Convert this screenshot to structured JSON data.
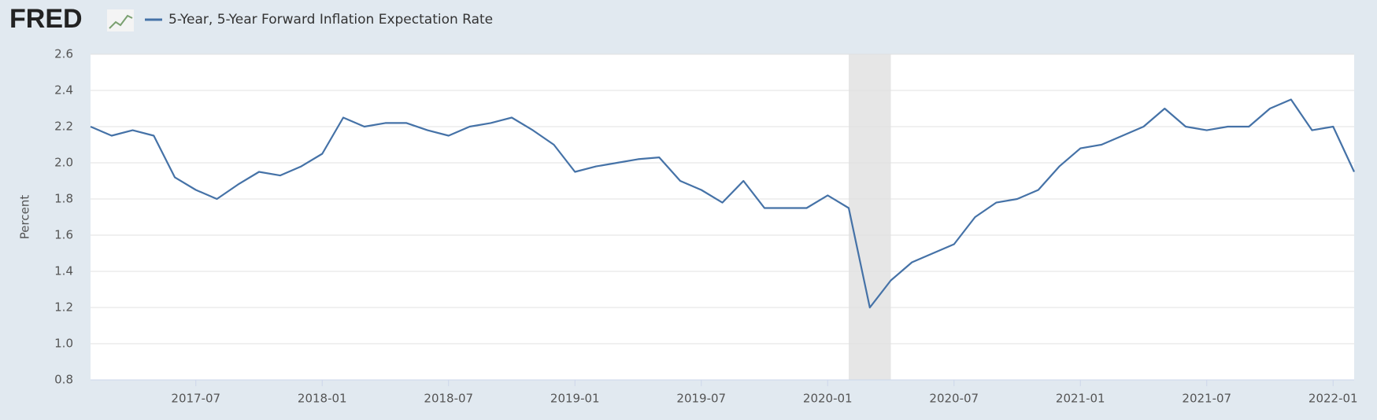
{
  "logo": "FRED",
  "chart_data": {
    "type": "line",
    "ylabel": "Percent",
    "x": [
      "2017-02",
      "2017-03",
      "2017-04",
      "2017-05",
      "2017-06",
      "2017-07",
      "2017-08",
      "2017-09",
      "2017-10",
      "2017-11",
      "2017-12",
      "2018-01",
      "2018-02",
      "2018-03",
      "2018-04",
      "2018-05",
      "2018-06",
      "2018-07",
      "2018-08",
      "2018-09",
      "2018-10",
      "2018-11",
      "2018-12",
      "2019-01",
      "2019-02",
      "2019-03",
      "2019-04",
      "2019-05",
      "2019-06",
      "2019-07",
      "2019-08",
      "2019-09",
      "2019-10",
      "2019-11",
      "2019-12",
      "2020-01",
      "2020-02",
      "2020-03",
      "2020-04",
      "2020-05",
      "2020-06",
      "2020-07",
      "2020-08",
      "2020-09",
      "2020-10",
      "2020-11",
      "2020-12",
      "2021-01",
      "2021-02",
      "2021-03",
      "2021-04",
      "2021-05",
      "2021-06",
      "2021-07",
      "2021-08",
      "2021-09",
      "2021-10",
      "2021-11",
      "2021-12",
      "2022-01",
      "2022-02"
    ],
    "series": [
      {
        "name": "5-Year, 5-Year Forward Inflation Expectation Rate",
        "color": "#4572a7",
        "values": [
          2.2,
          2.15,
          2.18,
          2.15,
          1.92,
          1.85,
          1.8,
          1.88,
          1.95,
          1.93,
          1.98,
          2.05,
          2.25,
          2.2,
          2.22,
          2.22,
          2.18,
          2.15,
          2.2,
          2.22,
          2.25,
          2.18,
          2.1,
          1.95,
          1.98,
          2.0,
          2.02,
          2.03,
          1.9,
          1.85,
          1.78,
          1.9,
          1.75,
          1.75,
          1.75,
          1.82,
          1.75,
          1.2,
          1.35,
          1.45,
          1.5,
          1.55,
          1.7,
          1.78,
          1.8,
          1.85,
          1.98,
          2.08,
          2.1,
          2.15,
          2.2,
          2.3,
          2.2,
          2.18,
          2.2,
          2.2,
          2.3,
          2.35,
          2.18,
          2.2,
          1.95
        ]
      }
    ],
    "xlim": [
      "2017-02",
      "2022-02"
    ],
    "xticks": [
      "2017-07",
      "2018-01",
      "2018-07",
      "2019-01",
      "2019-07",
      "2020-01",
      "2020-07",
      "2021-01",
      "2021-07",
      "2022-01"
    ],
    "ylim": [
      0.8,
      2.6
    ],
    "yticks": [
      0.8,
      {
        "value": 1,
        "label": "1.0"
      },
      1.2,
      1.4,
      1.6,
      1.8,
      {
        "value": 2,
        "label": "2.0"
      },
      2.2,
      2.4,
      2.6
    ],
    "grid": true,
    "recession": {
      "start": "2020-02",
      "end": "2020-04",
      "color": "#e6e6e6"
    }
  }
}
